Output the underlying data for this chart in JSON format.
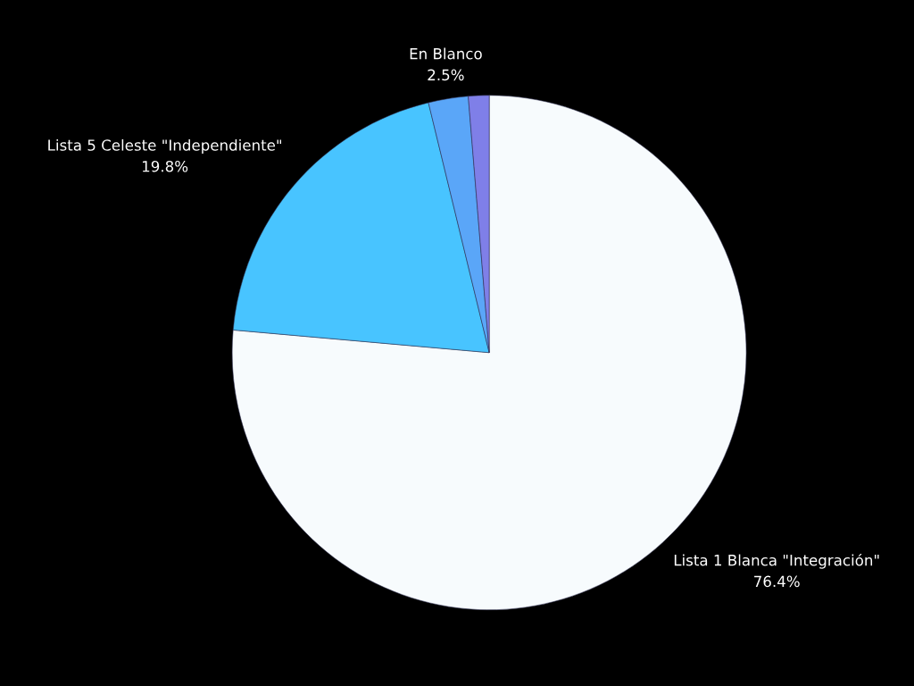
{
  "chart_data": {
    "type": "pie",
    "categories": [
      "Lista 1 Blanca \"Integración\"",
      "Lista 5 Celeste \"Independiente\"",
      "En Blanco",
      null
    ],
    "values": [
      76.4,
      19.8,
      2.5,
      1.3
    ],
    "value_labels": [
      "76.4%",
      "19.8%",
      "2.5%",
      null
    ],
    "colors": [
      "#f7fbfd",
      "#48c4ff",
      "#5aa6f8",
      "#7f7fe8"
    ]
  }
}
